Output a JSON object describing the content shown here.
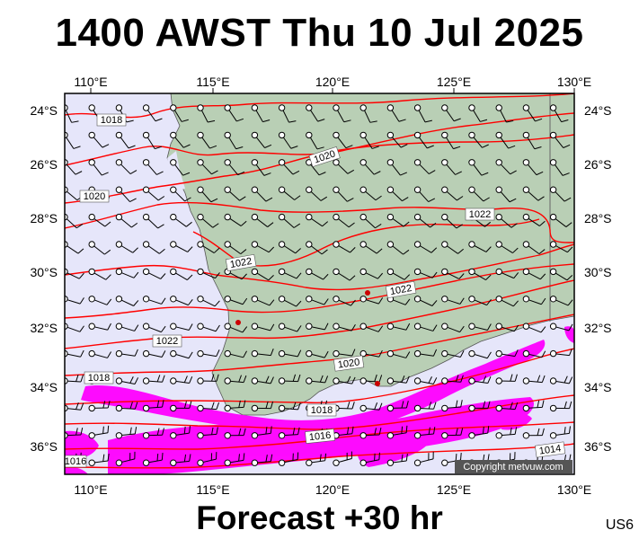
{
  "header": {
    "title": "1400 AWST Thu 10 Jul 2025"
  },
  "footer": {
    "forecast_label": "Forecast +30 hr",
    "model_code": "US6"
  },
  "map": {
    "copyright": "Copyright metvuw.com",
    "lon_labels": [
      "110°E",
      "115°E",
      "120°E",
      "125°E",
      "130°E"
    ],
    "lat_labels": [
      "24°S",
      "26°S",
      "28°S",
      "30°S",
      "32°S",
      "34°S",
      "36°S"
    ],
    "isobar_labels": [
      "1018",
      "1020",
      "1020",
      "1022",
      "1022",
      "1022",
      "1022",
      "1020",
      "1018",
      "1018",
      "1016",
      "1016",
      "1014"
    ],
    "colors": {
      "ocean": "#e6e6fa",
      "land": "#b9cfb5",
      "isobar": "#ff0000",
      "rain": "#ff00ff"
    }
  }
}
